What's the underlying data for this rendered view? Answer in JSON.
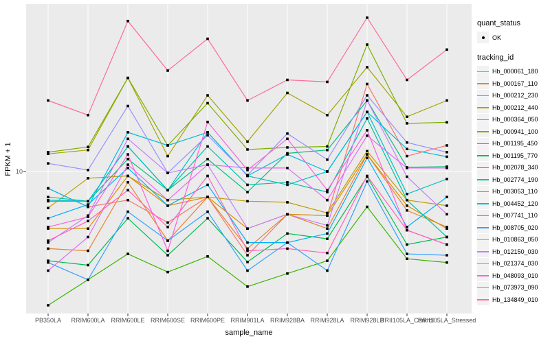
{
  "figure": {
    "y_axis": {
      "title": "FPKM + 1",
      "tick_label": "10"
    },
    "x_axis": {
      "title": "sample_name"
    },
    "legend": {
      "quant_title": "quant_status",
      "quant_item": "OK",
      "tracking_title": "tracking_id"
    },
    "style": {
      "panel_bg": "#EBEBEB",
      "grid_color": "#FFFFFF",
      "key_bg": "#F2F2F2",
      "axis_text_color": "#4D4D4D",
      "tick_color": "#333333",
      "point_color": "#000000"
    }
  },
  "chart_data": {
    "type": "line",
    "title": "",
    "xlabel": "sample_name",
    "ylabel": "FPKM + 1",
    "y_scale": "log10",
    "ylim": [
      1.4,
      100
    ],
    "y_ticks": [
      10
    ],
    "grid": true,
    "legend_position": "right",
    "marker": "black point (quant_status = OK)",
    "categories": [
      "PB350LA",
      "RRIM600LA",
      "RRIM600LE",
      "RRIM600SE",
      "RRIM600PE",
      "RRIM901LA",
      "RRIM928BA",
      "RRIM928LA",
      "RRIM928LB",
      "RRII105LA_Control",
      "RRII105LA_Stressed"
    ],
    "series": [
      {
        "name": "Hb_000061_180",
        "color": "#F8766D",
        "values": [
          7.9,
          6.1,
          6.7,
          4.9,
          7.0,
          3.1,
          5.5,
          5.4,
          34,
          12.4,
          14.4
        ]
      },
      {
        "name": "Hb_000167_110",
        "color": "#EA8331",
        "values": [
          3.4,
          3.3,
          8.6,
          3.8,
          7.0,
          3.4,
          5.5,
          4.5,
          12.7,
          5.8,
          4.6
        ]
      },
      {
        "name": "Hb_000212_230",
        "color": "#D89000",
        "values": [
          4.5,
          4.5,
          9.4,
          6.2,
          7.0,
          4.5,
          5.5,
          5.4,
          12.7,
          6.2,
          4.5
        ]
      },
      {
        "name": "Hb_000212_440",
        "color": "#C09B00",
        "values": [
          6.0,
          9.1,
          9.4,
          6.7,
          7.0,
          6.6,
          6.5,
          5.6,
          13.3,
          6.7,
          6.2
        ]
      },
      {
        "name": "Hb_000364_050",
        "color": "#A3A500",
        "values": [
          12.8,
          13.5,
          37,
          12.4,
          29,
          15.2,
          30,
          22,
          43,
          21.5,
          27
        ]
      },
      {
        "name": "Hb_000941_100",
        "color": "#7CAE00",
        "values": [
          13.1,
          14.1,
          37,
          14.4,
          26,
          13.6,
          14.0,
          14.2,
          59,
          19.6,
          19.9
        ]
      },
      {
        "name": "Hb_001195_450",
        "color": "#39B600",
        "values": [
          1.54,
          2.2,
          3.16,
          2.45,
          3.05,
          2.0,
          2.4,
          2.87,
          6.1,
          2.95,
          2.8
        ]
      },
      {
        "name": "Hb_001195_770",
        "color": "#00BB4E",
        "values": [
          2.87,
          2.7,
          5.2,
          3.1,
          5.2,
          2.82,
          4.2,
          3.9,
          9.3,
          3.6,
          4.0
        ]
      },
      {
        "name": "Hb_002078_340",
        "color": "#00BF7D",
        "values": [
          6.6,
          6.6,
          11.9,
          7.7,
          11.9,
          7.5,
          12.9,
          13.5,
          27,
          10.6,
          10.7
        ]
      },
      {
        "name": "Hb_002774_190",
        "color": "#00C1A3",
        "values": [
          7.0,
          6.6,
          14.2,
          7.7,
          14.2,
          8.3,
          8.6,
          7.5,
          21,
          6.7,
          4.0
        ]
      },
      {
        "name": "Hb_003053_110",
        "color": "#00BFC4",
        "values": [
          6.7,
          6.6,
          14.2,
          7.7,
          17.3,
          9.4,
          8.3,
          10,
          23,
          7.3,
          9.0
        ]
      },
      {
        "name": "Hb_004452_120",
        "color": "#00BAE0",
        "values": [
          7.9,
          6.1,
          17.3,
          14.4,
          17.3,
          9.4,
          12.7,
          10,
          23,
          13.7,
          12.3
        ]
      },
      {
        "name": "Hb_007741_110",
        "color": "#00B0F6",
        "values": [
          5.2,
          6.3,
          10.5,
          6.2,
          8.3,
          3.7,
          3.7,
          4.2,
          12.1,
          4.6,
          7.0
        ]
      },
      {
        "name": "Hb_008705_020",
        "color": "#35A2FF",
        "values": [
          2.8,
          2.2,
          5.7,
          3.8,
          5.7,
          2.5,
          3.7,
          2.5,
          8.7,
          3.16,
          3.1
        ]
      },
      {
        "name": "Hb_010863_050",
        "color": "#9590FF",
        "values": [
          11.2,
          10.2,
          25,
          9.8,
          16.6,
          9.5,
          17.0,
          11.8,
          29,
          15.0,
          13.1
        ]
      },
      {
        "name": "Hb_012150_030",
        "color": "#C77CFF",
        "values": [
          3.7,
          5.4,
          15.8,
          9.8,
          11.0,
          4.5,
          5.5,
          4.7,
          27,
          9.3,
          5.5
        ]
      },
      {
        "name": "Hb_021374_030",
        "color": "#E76BF3",
        "values": [
          2.5,
          4.0,
          11.0,
          6.7,
          11.0,
          10.5,
          10.5,
          6.7,
          16.5,
          10.5,
          10.5
        ]
      },
      {
        "name": "Hb_048093_010",
        "color": "#FA62DB",
        "values": [
          4.6,
          5.3,
          12.7,
          3.3,
          20,
          10.2,
          15.8,
          7.7,
          17.8,
          4.4,
          3.6
        ]
      },
      {
        "name": "Hb_073973_090",
        "color": "#FF62BC",
        "values": [
          3.8,
          5.0,
          7.7,
          4.6,
          9.4,
          3.3,
          3.4,
          3.2,
          9.4,
          4.4,
          3.6
        ]
      },
      {
        "name": "Hb_134849_010",
        "color": "#FF6A98",
        "values": [
          27,
          22,
          82,
          41,
          64,
          27,
          36,
          35,
          86,
          36,
          55
        ]
      }
    ]
  }
}
